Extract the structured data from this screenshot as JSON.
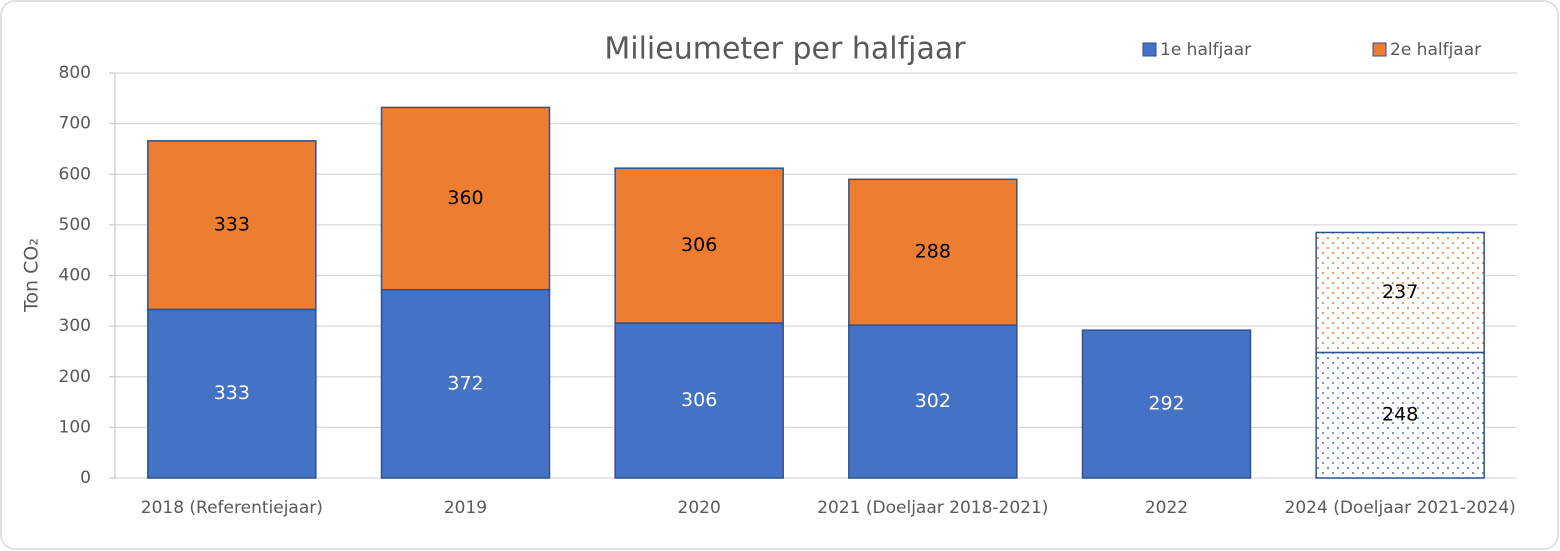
{
  "chart_data": {
    "type": "stacked_bar",
    "title": "Milieumeter per halfjaar",
    "y_label": "Ton CO₂",
    "categories": [
      "2018 (Referentiejaar)",
      "2019",
      "2020",
      "2021 (Doeljaar 2018-2021)",
      "2022",
      "2024 (Doeljaar 2021-2024)"
    ],
    "series": [
      {
        "name": "1e halfjaar",
        "color": "#4472c4",
        "values": [
          333,
          372,
          306,
          302,
          292,
          248
        ]
      },
      {
        "name": "2e halfjaar",
        "color": "#ed7d31",
        "values": [
          333,
          360,
          306,
          288,
          null,
          237
        ]
      }
    ],
    "projected": [
      false,
      false,
      false,
      false,
      false,
      true
    ],
    "ylim": [
      0,
      800
    ],
    "yticks": [
      0,
      100,
      200,
      300,
      400,
      500,
      600,
      700,
      800
    ],
    "grid": true,
    "legend": "top-right"
  }
}
